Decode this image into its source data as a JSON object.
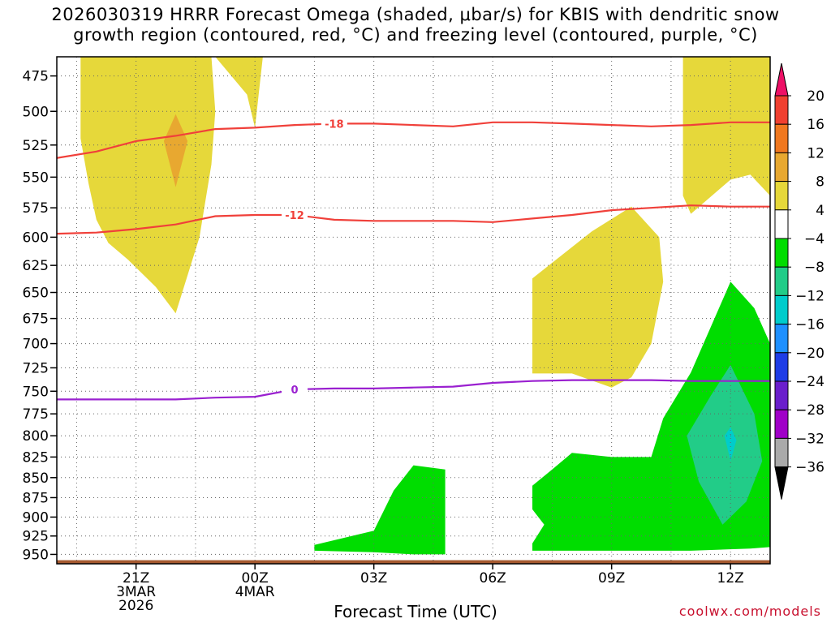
{
  "title_line1": "2026030319 HRRR Forecast Omega (shaded, μbar/s) for KBIS with dendritic snow",
  "title_line2": "growth region (contoured, red, °C) and freezing level (contoured, purple, °C)",
  "xlabel": "Forecast Time (UTC)",
  "credit": "coolwx.com/models",
  "chart_data": {
    "type": "contour",
    "title": "2026030319 HRRR Forecast Omega (shaded, μbar/s) for KBIS with dendritic snow growth region (contoured, red, °C) and freezing level (contoured, purple, °C)",
    "xlabel": "Forecast Time (UTC)",
    "ylabel": "",
    "x_unit": "forecast hour from 2026-03-03 19Z",
    "xlim": [
      0,
      18
    ],
    "ylim": [
      963,
      462
    ],
    "y_scale": "log-pressure",
    "grid": true,
    "x_ticks": [
      {
        "x": 2,
        "label": "21Z",
        "sub1": "3MAR",
        "sub2": "2026"
      },
      {
        "x": 5,
        "label": "00Z",
        "sub1": "4MAR",
        "sub2": ""
      },
      {
        "x": 8,
        "label": "03Z",
        "sub1": "",
        "sub2": ""
      },
      {
        "x": 11,
        "label": "06Z",
        "sub1": "",
        "sub2": ""
      },
      {
        "x": 14,
        "label": "09Z",
        "sub1": "",
        "sub2": ""
      },
      {
        "x": 17,
        "label": "12Z",
        "sub1": "",
        "sub2": ""
      }
    ],
    "y_ticks": [
      475,
      500,
      525,
      550,
      575,
      600,
      625,
      650,
      675,
      700,
      725,
      750,
      775,
      800,
      825,
      850,
      875,
      900,
      925,
      950
    ],
    "colorbar": {
      "labels": [
        "20",
        "16",
        "12",
        "8",
        "4",
        "−4",
        "−8",
        "−12",
        "−16",
        "−20",
        "−24",
        "−28",
        "−32",
        "−36"
      ],
      "colors": [
        "#ee1066",
        "#f04030",
        "#f07820",
        "#e8a830",
        "#e6d83a",
        "#ffffff",
        "#00dd00",
        "#22cc88",
        "#00cccc",
        "#1e90ff",
        "#1e3ce6",
        "#6a1ecc",
        "#a000c8",
        "#aaaaaa",
        "#000000"
      ]
    },
    "contours": [
      {
        "label": "-18",
        "color": "#f0403a",
        "points": [
          [
            0,
            535
          ],
          [
            1,
            530
          ],
          [
            2,
            522
          ],
          [
            3,
            518
          ],
          [
            4,
            513
          ],
          [
            5,
            512
          ],
          [
            6,
            510
          ],
          [
            7,
            509
          ],
          [
            8,
            509
          ],
          [
            9,
            510
          ],
          [
            10,
            511
          ],
          [
            11,
            508
          ],
          [
            12,
            508
          ],
          [
            13,
            509
          ],
          [
            14,
            510
          ],
          [
            15,
            511
          ],
          [
            16,
            510
          ],
          [
            17,
            508
          ],
          [
            18,
            508
          ]
        ],
        "label_x": 7
      },
      {
        "label": "-12",
        "color": "#f0403a",
        "points": [
          [
            0,
            597
          ],
          [
            1,
            596
          ],
          [
            2,
            593
          ],
          [
            3,
            589
          ],
          [
            4,
            582
          ],
          [
            5,
            581
          ],
          [
            6,
            581
          ],
          [
            7,
            585
          ],
          [
            8,
            586
          ],
          [
            9,
            586
          ],
          [
            10,
            586
          ],
          [
            11,
            587
          ],
          [
            12,
            584
          ],
          [
            13,
            581
          ],
          [
            14,
            577
          ],
          [
            15,
            575
          ],
          [
            16,
            573
          ],
          [
            17,
            574
          ],
          [
            18,
            574
          ]
        ],
        "label_x": 6
      },
      {
        "label": "0",
        "color": "#9a20d0",
        "points": [
          [
            0,
            759
          ],
          [
            1,
            759
          ],
          [
            2,
            759
          ],
          [
            3,
            759
          ],
          [
            4,
            757
          ],
          [
            5,
            756
          ],
          [
            6,
            748
          ],
          [
            7,
            747
          ],
          [
            8,
            747
          ],
          [
            9,
            746
          ],
          [
            10,
            745
          ],
          [
            11,
            741
          ],
          [
            12,
            739
          ],
          [
            13,
            738
          ],
          [
            14,
            738
          ],
          [
            15,
            738
          ],
          [
            16,
            739
          ],
          [
            17,
            739
          ],
          [
            18,
            739
          ]
        ],
        "label_x": 6
      }
    ],
    "omega_regions": [
      {
        "value_range": "4 to 8",
        "color": "#e6d83a",
        "points": [
          [
            0.6,
            462
          ],
          [
            0.6,
            520
          ],
          [
            0.8,
            555
          ],
          [
            1.0,
            585
          ],
          [
            1.3,
            605
          ],
          [
            1.8,
            620
          ],
          [
            2.5,
            645
          ],
          [
            3.0,
            670
          ],
          [
            3.6,
            600
          ],
          [
            3.9,
            540
          ],
          [
            4.0,
            500
          ],
          [
            3.9,
            462
          ]
        ]
      },
      {
        "value_range": "8 to 12",
        "color": "#e8a830",
        "points": [
          [
            3.0,
            502
          ],
          [
            2.7,
            522
          ],
          [
            3.0,
            558
          ],
          [
            3.3,
            522
          ]
        ]
      },
      {
        "value_range": "4 to 8",
        "color": "#e6d83a",
        "points": [
          [
            4.0,
            462
          ],
          [
            4.8,
            488
          ],
          [
            5.0,
            512
          ],
          [
            5.2,
            462
          ]
        ]
      },
      {
        "value_range": "4 to 8",
        "color": "#e6d83a",
        "points": [
          [
            12.0,
            720
          ],
          [
            12.0,
            637
          ],
          [
            13.5,
            595
          ],
          [
            14.5,
            574
          ],
          [
            15.2,
            600
          ],
          [
            15.3,
            640
          ],
          [
            15.0,
            700
          ],
          [
            14.5,
            735
          ],
          [
            14.0,
            746
          ],
          [
            13.0,
            731
          ],
          [
            12.0,
            731
          ]
        ]
      },
      {
        "value_range": "4 to 8",
        "color": "#e6d83a",
        "points": [
          [
            15.8,
            462
          ],
          [
            15.8,
            565
          ],
          [
            16.0,
            580
          ],
          [
            17.0,
            552
          ],
          [
            17.5,
            548
          ],
          [
            18.0,
            565
          ],
          [
            18.0,
            462
          ]
        ]
      },
      {
        "value_range": "-4 to -8",
        "color": "#00dd00",
        "points": [
          [
            6.5,
            937
          ],
          [
            8.0,
            918
          ],
          [
            8.5,
            866
          ],
          [
            9.0,
            835
          ],
          [
            9.8,
            840
          ],
          [
            9.8,
            950
          ],
          [
            9.0,
            950
          ],
          [
            8.0,
            947
          ],
          [
            6.5,
            945
          ]
        ]
      },
      {
        "value_range": "-4 to -8",
        "color": "#00dd00",
        "points": [
          [
            12.0,
            860
          ],
          [
            12.5,
            840
          ],
          [
            13.0,
            820
          ],
          [
            14.0,
            825
          ],
          [
            15.0,
            825
          ],
          [
            15.3,
            780
          ],
          [
            16.0,
            730
          ],
          [
            17.0,
            640
          ],
          [
            17.6,
            665
          ],
          [
            18.0,
            700
          ],
          [
            18.0,
            940
          ],
          [
            17.5,
            942
          ],
          [
            16.0,
            945
          ],
          [
            14.0,
            945
          ],
          [
            12.0,
            945
          ],
          [
            12.0,
            935
          ],
          [
            12.3,
            910
          ],
          [
            12.0,
            890
          ]
        ]
      },
      {
        "value_range": "-8 to -12",
        "color": "#22cc88",
        "points": [
          [
            17.0,
            722
          ],
          [
            16.5,
            755
          ],
          [
            15.9,
            800
          ],
          [
            16.2,
            855
          ],
          [
            16.8,
            910
          ],
          [
            17.4,
            880
          ],
          [
            17.8,
            830
          ],
          [
            17.6,
            775
          ]
        ]
      },
      {
        "value_range": "-12 to -16",
        "color": "#00cccc",
        "points": [
          [
            17.0,
            790
          ],
          [
            16.85,
            800
          ],
          [
            17.0,
            830
          ],
          [
            17.15,
            805
          ]
        ]
      }
    ],
    "surface": {
      "color": "#a65a30",
      "top_pressure": 958
    }
  }
}
